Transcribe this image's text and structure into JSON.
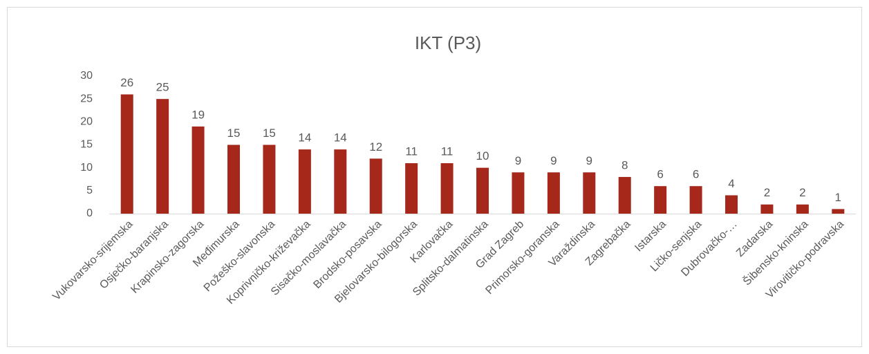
{
  "chart_data": {
    "type": "bar",
    "title": "IKT (P3)",
    "categories": [
      "Vukovarsko-srijemska",
      "Osječko-baranjska",
      "Krapinsko-zagorska",
      "Međimurska",
      "Požeško-slavonska",
      "Koprivničko-križevačka",
      "Sisačko-moslavačka",
      "Brodsko-posavska",
      "Bjelovarsko-bilogorska",
      "Karlovačka",
      "Splitsko-dalmatinska",
      "Grad Zagreb",
      "Primorsko-goranska",
      "Varaždinska",
      "Zagrebačka",
      "Istarska",
      "Ličko-senjska",
      "Dubrovačko-…",
      "Zadarska",
      "Šibensko-kninska",
      "Virovitičko-podravska"
    ],
    "values": [
      26,
      25,
      19,
      15,
      15,
      14,
      14,
      12,
      11,
      11,
      10,
      9,
      9,
      9,
      8,
      6,
      6,
      4,
      2,
      2,
      1
    ],
    "color": "#a5281b",
    "ylim": [
      0,
      30
    ],
    "yticks": [
      0,
      5,
      10,
      15,
      20,
      25,
      30
    ],
    "grid": false
  }
}
